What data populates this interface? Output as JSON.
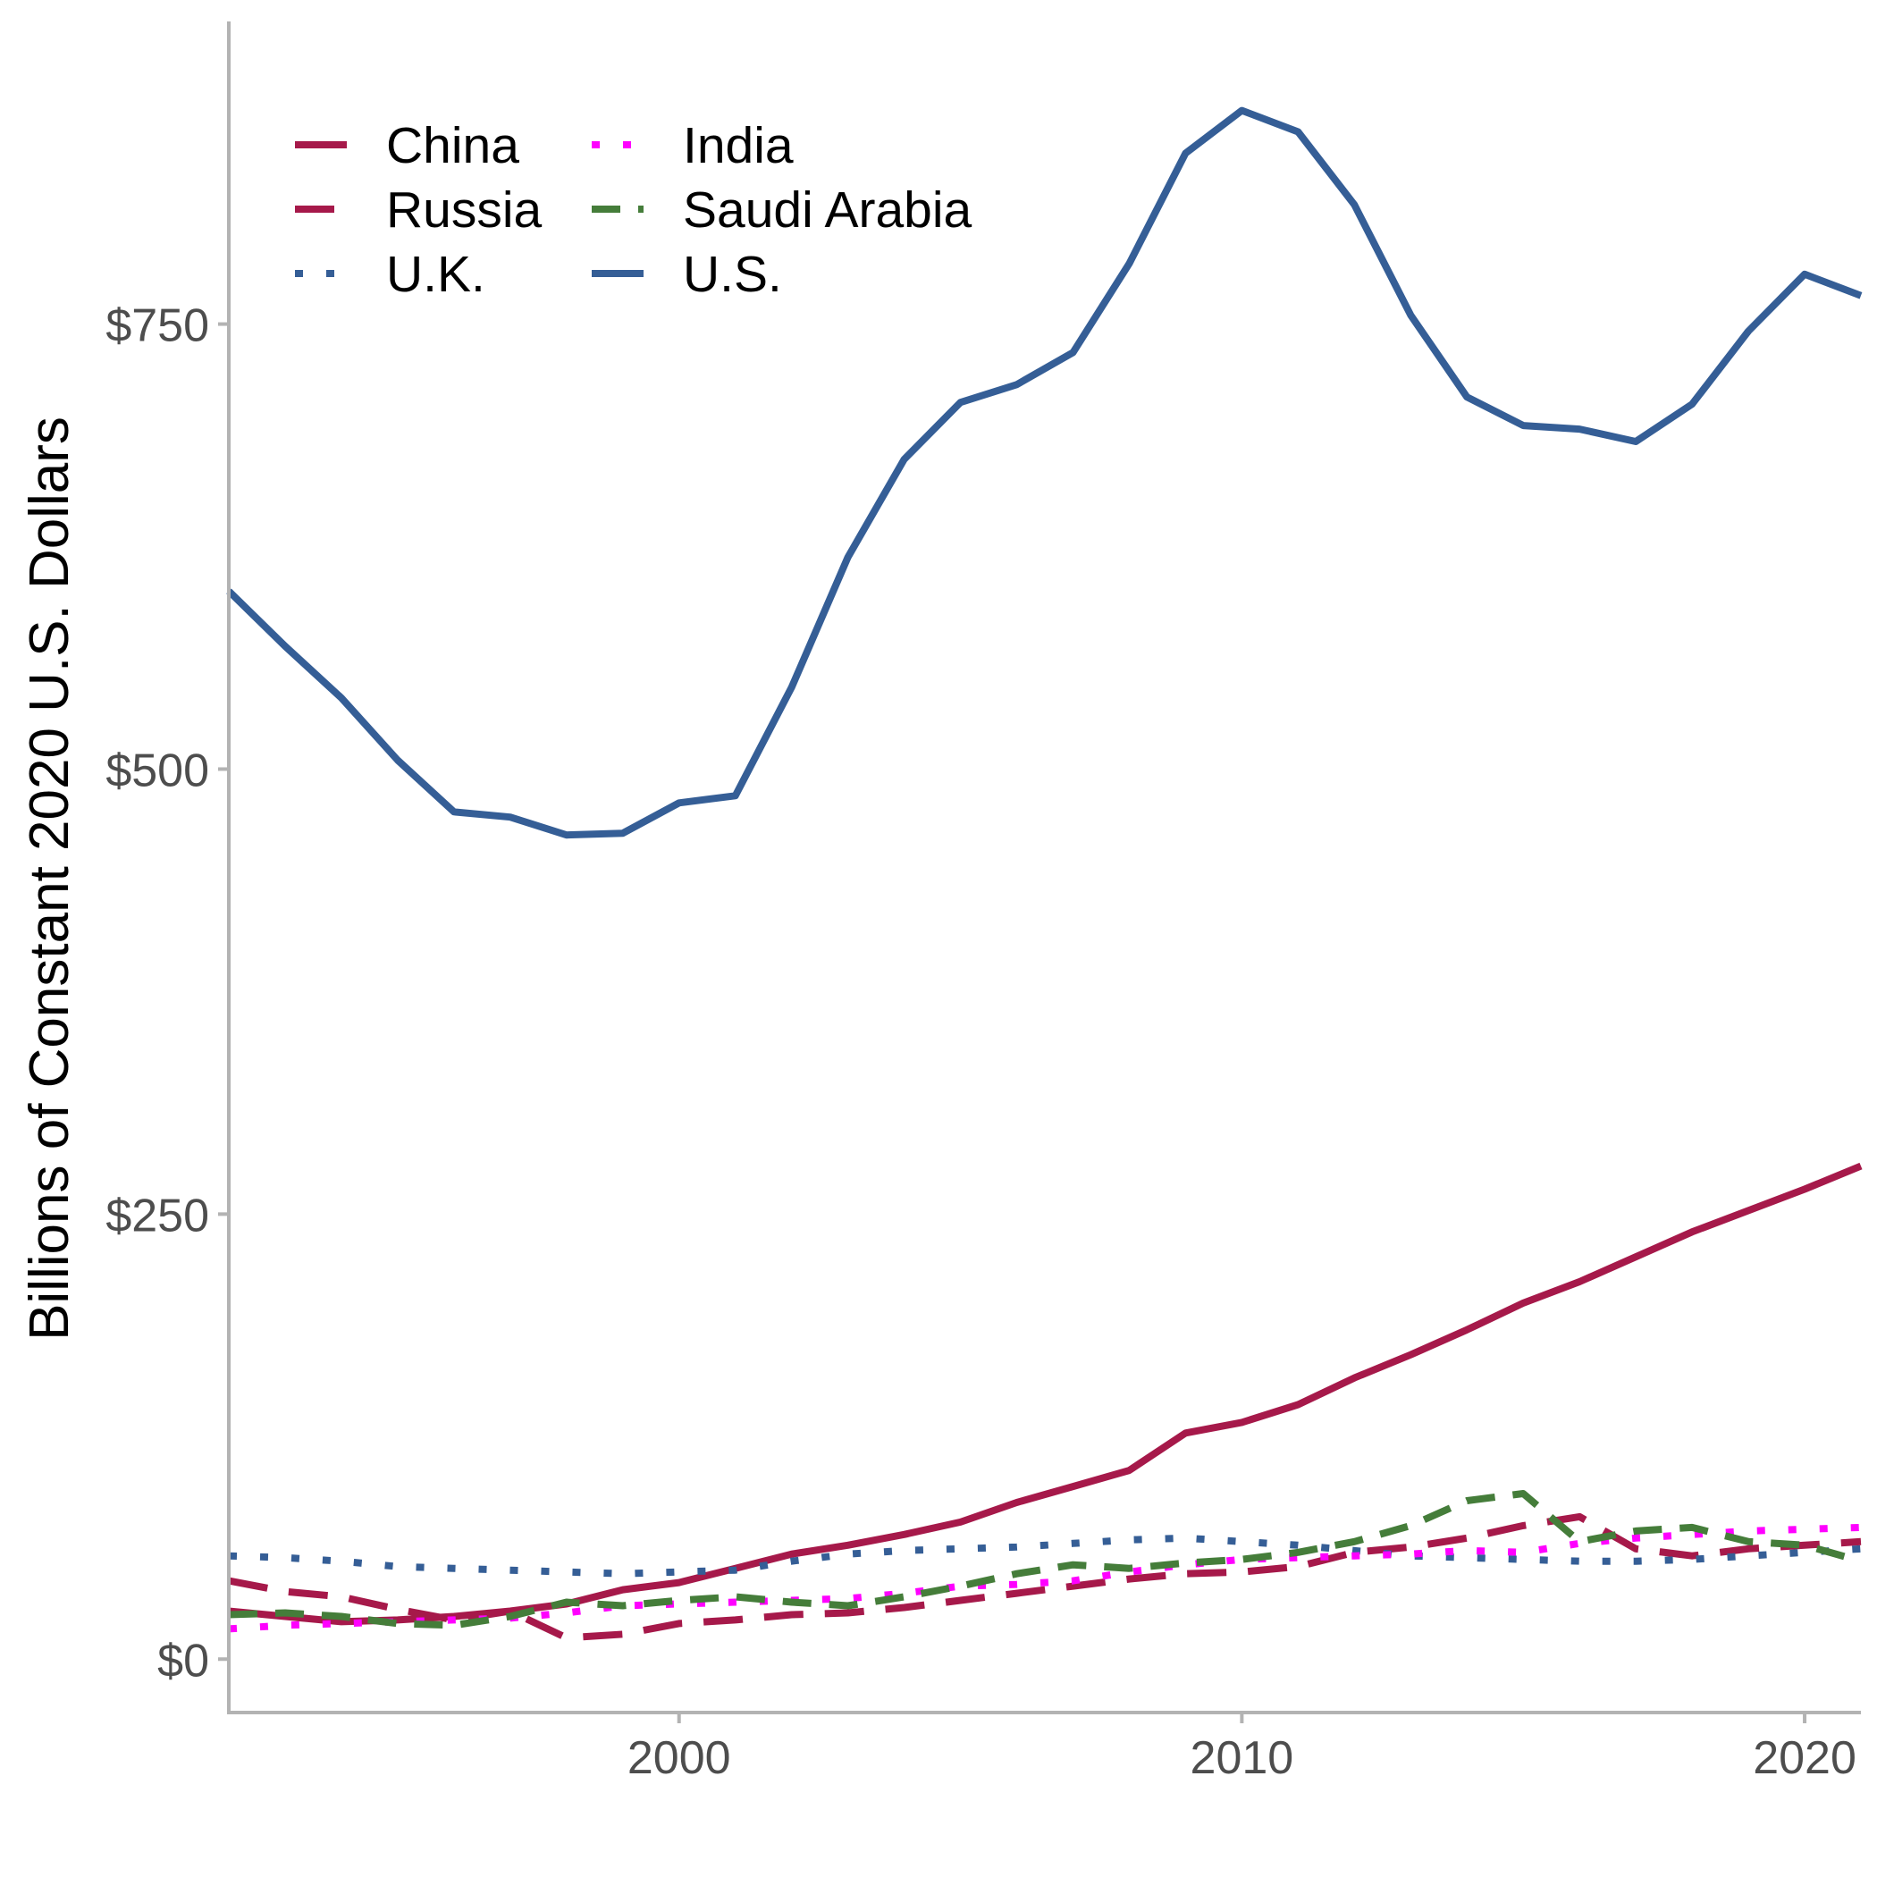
{
  "chart_data": {
    "type": "line",
    "title": "",
    "xlabel": "",
    "ylabel": "Billions of Constant 2020 U.S. Dollars",
    "xlim": [
      1992,
      2021
    ],
    "ylim": [
      -30,
      920
    ],
    "x_ticks": [
      2000,
      2010,
      2020
    ],
    "x_tick_labels": [
      "2000",
      "2010",
      "2020"
    ],
    "y_ticks": [
      0,
      250,
      500,
      750
    ],
    "y_tick_labels": [
      "$0",
      "$250",
      "$500",
      "$750"
    ],
    "grid": false,
    "legend_position": "top-left",
    "x": [
      1992,
      1993,
      1994,
      1995,
      1996,
      1997,
      1998,
      1999,
      2000,
      2001,
      2002,
      2003,
      2004,
      2005,
      2006,
      2007,
      2008,
      2009,
      2010,
      2011,
      2012,
      2013,
      2014,
      2015,
      2016,
      2017,
      2018,
      2019,
      2020,
      2021
    ],
    "series": [
      {
        "name": "China",
        "color": "#a6194a",
        "dash": "solid",
        "values": [
          27,
          24,
          21,
          22,
          24,
          27,
          31,
          39,
          43,
          51,
          59,
          64,
          70,
          77,
          88,
          97,
          106,
          127,
          133,
          143,
          158,
          171,
          185,
          200,
          212,
          226,
          240,
          252,
          264,
          277
        ]
      },
      {
        "name": "Russia",
        "color": "#a6194a",
        "dash": "longdash",
        "values": [
          44,
          38,
          35,
          28,
          22,
          27,
          12,
          14,
          20,
          22,
          25,
          26,
          29,
          33,
          37,
          41,
          45,
          48,
          49,
          52,
          60,
          63,
          68,
          75,
          80,
          62,
          58,
          62,
          64,
          66
        ]
      },
      {
        "name": "U.K.",
        "color": "#355e96",
        "dash": "dotted",
        "values": [
          58,
          57,
          55,
          52,
          51,
          50,
          49,
          48,
          49,
          50,
          55,
          59,
          61,
          62,
          63,
          65,
          67,
          68,
          66,
          64,
          61,
          58,
          57,
          56,
          55,
          55,
          56,
          58,
          60,
          62
        ]
      },
      {
        "name": "India",
        "color": "#ff00ff",
        "dash": "dotted",
        "values": [
          17,
          19,
          20,
          21,
          22,
          23,
          26,
          30,
          31,
          32,
          33,
          34,
          37,
          41,
          42,
          44,
          49,
          53,
          56,
          57,
          58,
          59,
          61,
          60,
          65,
          68,
          70,
          72,
          73,
          74
        ]
      },
      {
        "name": "Saudi Arabia",
        "color": "#457d3a",
        "dash": "dashed",
        "values": [
          25,
          26,
          24,
          20,
          19,
          24,
          32,
          30,
          33,
          35,
          32,
          30,
          35,
          41,
          48,
          53,
          51,
          54,
          56,
          60,
          66,
          75,
          89,
          93,
          66,
          72,
          74,
          66,
          64,
          55
        ]
      },
      {
        "name": "U.S.",
        "color": "#355e96",
        "dash": "solid",
        "values": [
          600,
          569,
          540,
          505,
          476,
          473,
          463,
          464,
          481,
          485,
          546,
          619,
          674,
          706,
          716,
          734,
          784,
          846,
          870,
          858,
          817,
          755,
          709,
          693,
          691,
          684,
          705,
          746,
          778,
          766
        ]
      }
    ]
  }
}
